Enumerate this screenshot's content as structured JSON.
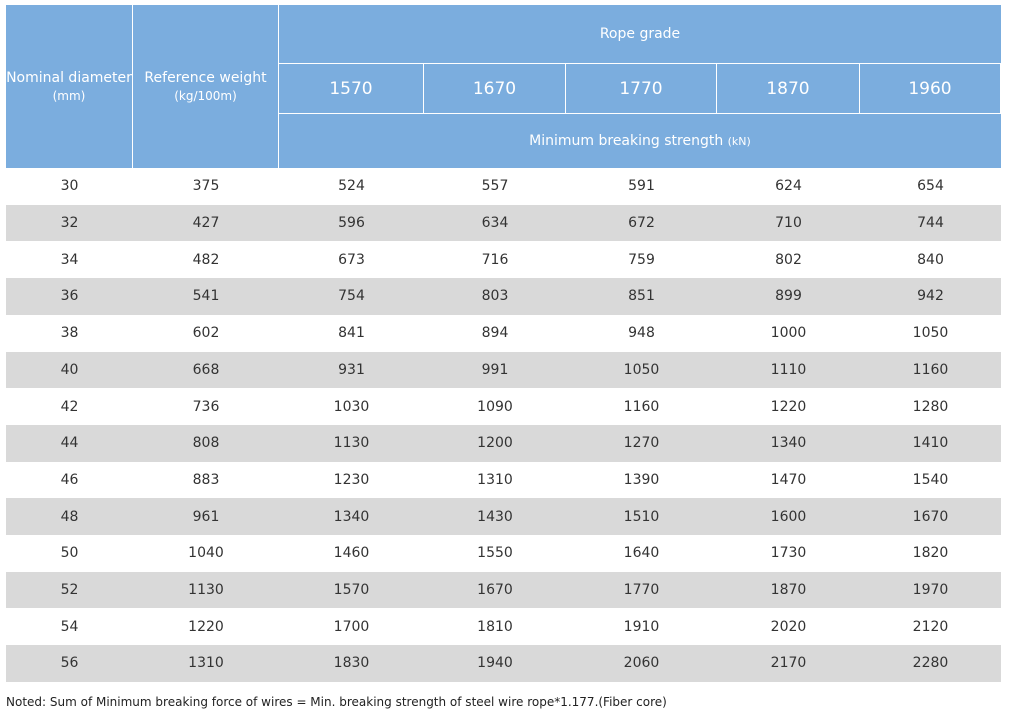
{
  "header": {
    "diameter": "Nominal diameter",
    "diameter_unit": "(mm)",
    "weight": "Reference weight",
    "weight_unit": "(kg/100m)",
    "rope_grade": "Rope grade",
    "grades": [
      1570,
      1670,
      1770,
      1870,
      1960
    ],
    "strength": "Minimum breaking strength",
    "strength_unit": "(kN)"
  },
  "table": {
    "rows": [
      [
        30,
        375,
        524,
        557,
        591,
        624,
        654
      ],
      [
        32,
        427,
        596,
        634,
        672,
        710,
        744
      ],
      [
        34,
        482,
        673,
        716,
        759,
        802,
        840
      ],
      [
        36,
        541,
        754,
        803,
        851,
        899,
        942
      ],
      [
        38,
        602,
        841,
        894,
        948,
        1000,
        1050
      ],
      [
        40,
        668,
        931,
        991,
        1050,
        1110,
        1160
      ],
      [
        42,
        736,
        1030,
        1090,
        1160,
        1220,
        1280
      ],
      [
        44,
        808,
        1130,
        1200,
        1270,
        1340,
        1410
      ],
      [
        46,
        883,
        1230,
        1310,
        1390,
        1470,
        1540
      ],
      [
        48,
        961,
        1340,
        1430,
        1510,
        1600,
        1670
      ],
      [
        50,
        1040,
        1460,
        1550,
        1640,
        1730,
        1820
      ],
      [
        52,
        1130,
        1570,
        1670,
        1770,
        1870,
        1970
      ],
      [
        54,
        1220,
        1700,
        1810,
        1910,
        2020,
        2120
      ],
      [
        56,
        1310,
        1830,
        1940,
        2060,
        2170,
        2280
      ]
    ]
  },
  "note": "Noted: Sum of Minimum breaking force of wires = Min. breaking strength of steel wire rope*1.177.(Fiber core)"
}
